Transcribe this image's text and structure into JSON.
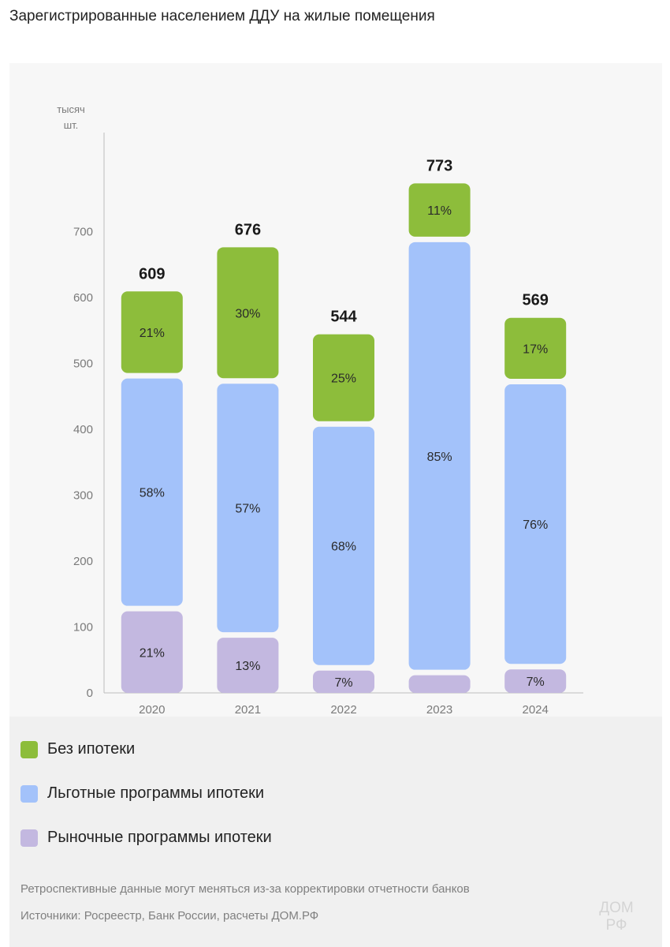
{
  "title": "Зарегистрированные населением ДДУ на жилые помещения",
  "chart_data": {
    "type": "bar",
    "stacked": true,
    "unit_label_line1": "тысяч",
    "unit_label_line2": "шт.",
    "categories": [
      "2020",
      "2021",
      "2022",
      "2023",
      "2024"
    ],
    "totals": [
      609,
      676,
      544,
      773,
      569
    ],
    "yticks": [
      0,
      100,
      200,
      300,
      400,
      500,
      600,
      700
    ],
    "ylim": [
      0,
      850
    ],
    "series": [
      {
        "name": "Рыночные программы ипотеки",
        "color": "#c3b8e0",
        "percent_labels": [
          "21%",
          "13%",
          "7%",
          "",
          "7%"
        ],
        "shares": [
          21,
          13,
          7,
          4,
          7
        ]
      },
      {
        "name": "Льготные программы ипотеки",
        "color": "#a3c2fa",
        "percent_labels": [
          "58%",
          "57%",
          "68%",
          "85%",
          "76%"
        ],
        "shares": [
          58,
          57,
          68,
          85,
          76
        ]
      },
      {
        "name": "Без ипотеки",
        "color": "#8dbd3b",
        "percent_labels": [
          "21%",
          "30%",
          "25%",
          "11%",
          "17%"
        ],
        "shares": [
          21,
          30,
          25,
          11,
          17
        ]
      }
    ]
  },
  "legend": [
    {
      "label": "Без ипотеки",
      "color": "#8dbd3b"
    },
    {
      "label": "Льготные программы ипотеки",
      "color": "#a3c2fa"
    },
    {
      "label": "Рыночные программы ипотеки",
      "color": "#c3b8e0"
    }
  ],
  "notes": {
    "line1": "Ретроспективные данные могут меняться из-за корректировки отчетности банков",
    "line2": "Источники: Росреестр, Банк России, расчеты ДОМ.РФ"
  },
  "logo": {
    "line1": "ДОМ",
    "line2": "РФ"
  }
}
